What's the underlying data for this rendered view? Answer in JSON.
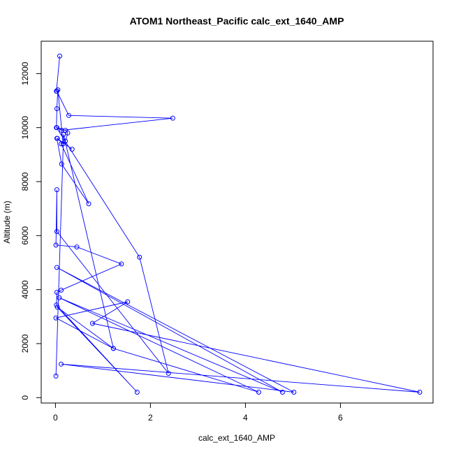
{
  "chart_data": {
    "type": "line",
    "title": "ATOM1 Northeast_Pacific calc_ext_1640_AMP",
    "xlabel": "calc_ext_1640_AMP",
    "ylabel": "Altitude (m)",
    "xlim": [
      -0.3,
      7.95
    ],
    "ylim": [
      -200,
      13200
    ],
    "x_ticks": [
      0,
      2,
      4,
      6
    ],
    "y_ticks": [
      0,
      2000,
      4000,
      6000,
      8000,
      10000,
      12000
    ],
    "grid": false,
    "legend": "none",
    "line_color": "#0000FF",
    "x": [
      0.09,
      0.02,
      0.03,
      0.28,
      2.47,
      0.13,
      0.03,
      0.21,
      0.26,
      0.21,
      0.12,
      0.7,
      0.13,
      0.03,
      0.35,
      0.04,
      0.16,
      0.05,
      0.03,
      0.02,
      1.77,
      2.38,
      0.03,
      0.03,
      0.01,
      0.45,
      1.39,
      0.12,
      0.03,
      0.02,
      1.72,
      0.04,
      1.22,
      0.01,
      1.52,
      0.78,
      7.67,
      0.12,
      5.02,
      0.03,
      4.78,
      0.08,
      4.28,
      1.22,
      0.17,
      0.01
    ],
    "y": [
      12650,
      11350,
      11350,
      10450,
      10350,
      9900,
      10000,
      9900,
      9800,
      9500,
      9400,
      7180,
      8650,
      9600,
      9200,
      9600,
      9400,
      11400,
      10700,
      10000,
      5200,
      900,
      6150,
      7700,
      5650,
      5580,
      4950,
      3980,
      3900,
      3430,
      200,
      3350,
      1820,
      2950,
      3550,
      2750,
      200,
      1240,
      200,
      4820,
      200,
      3700,
      200,
      1820,
      9750,
      800
    ]
  }
}
